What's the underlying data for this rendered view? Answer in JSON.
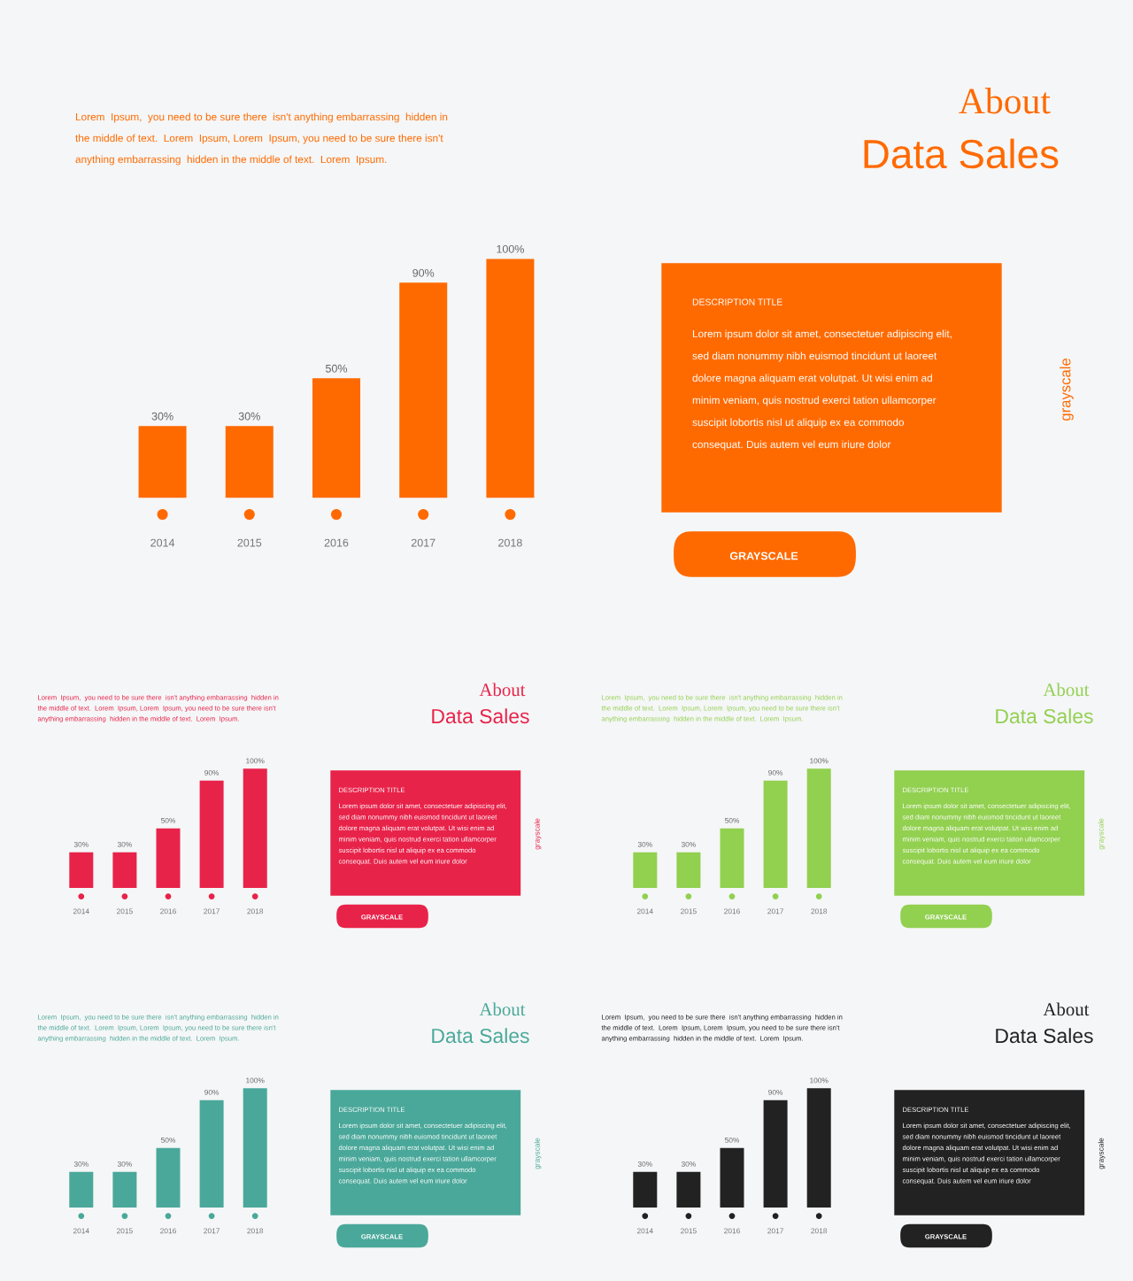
{
  "chart_data": [
    {
      "type": "bar",
      "categories": [
        "2014",
        "2015",
        "2016",
        "2017",
        "2018"
      ],
      "values": [
        30,
        30,
        50,
        90,
        100
      ],
      "value_labels": [
        "30%",
        "30%",
        "50%",
        "90%",
        "100%"
      ],
      "color": "#ff6a00",
      "annotations": [
        "About",
        "Data Sales",
        "Lorem  Ipsum,  you need to be sure there  isn't anything embarrassing  hidden in",
        "the middle of text.  Lorem  Ipsum, Lorem  Ipsum, you need to be sure there isn't",
        "anything embarrassing  hidden in the middle of text.  Lorem  Ipsum.",
        "DESCRIPTION TITLE",
        "Lorem ipsum dolor sit amet, consectetuer adipiscing elit,",
        "sed diam nonummy nibh euismod tincidunt ut laoreet",
        "dolore magna aliquam erat volutpat. Ut wisi enim ad",
        "minim veniam, quis nostrud exerci tation ullamcorper",
        "suscipit lobortis nisl ut aliquip ex ea commodo",
        "consequat. Duis autem vel eum iriure dolor",
        "GRAYSCALE",
        "grayscale"
      ]
    },
    {
      "type": "bar",
      "categories": [
        "2014",
        "2015",
        "2016",
        "2017",
        "2018"
      ],
      "values": [
        30,
        30,
        50,
        90,
        100
      ],
      "value_labels": [
        "30%",
        "30%",
        "50%",
        "90%",
        "100%"
      ],
      "color": "#e8234a",
      "annotations": [
        "About",
        "Data Sales",
        "Lorem  Ipsum,  you need to be sure there  isn't anything embarrassing  hidden in",
        "the middle of text.  Lorem  Ipsum, Lorem  Ipsum, you need to be sure there isn't",
        "anything embarrassing  hidden in the middle of text.  Lorem  Ipsum.",
        "DESCRIPTION TITLE",
        "Lorem ipsum dolor sit amet, consectetuer adipiscing elit,",
        "sed diam nonummy nibh euismod tincidunt ut laoreet",
        "dolore magna aliquam erat volutpat. Ut wisi enim ad",
        "minim veniam, quis nostrud exerci tation ullamcorper",
        "suscipit lobortis nisl ut aliquip ex ea commodo",
        "consequat. Duis autem vel eum iriure dolor",
        "GRAYSCALE",
        "grayscale"
      ]
    },
    {
      "type": "bar",
      "categories": [
        "2014",
        "2015",
        "2016",
        "2017",
        "2018"
      ],
      "values": [
        30,
        30,
        50,
        90,
        100
      ],
      "value_labels": [
        "30%",
        "30%",
        "50%",
        "90%",
        "100%"
      ],
      "color": "#92d050",
      "annotations": [
        "About",
        "Data Sales",
        "Lorem  Ipsum,  you need to be sure there  isn't anything embarrassing  hidden in",
        "the middle of text.  Lorem  Ipsum, Lorem  Ipsum, you need to be sure there isn't",
        "anything embarrassing  hidden in the middle of text.  Lorem  Ipsum.",
        "DESCRIPTION TITLE",
        "Lorem ipsum dolor sit amet, consectetuer adipiscing elit,",
        "sed diam nonummy nibh euismod tincidunt ut laoreet",
        "dolore magna aliquam erat volutpat. Ut wisi enim ad",
        "minim veniam, quis nostrud exerci tation ullamcorper",
        "suscipit lobortis nisl ut aliquip ex ea commodo",
        "consequat. Duis autem vel eum iriure dolor",
        "GRAYSCALE",
        "grayscale"
      ]
    },
    {
      "type": "bar",
      "categories": [
        "2014",
        "2015",
        "2016",
        "2017",
        "2018"
      ],
      "values": [
        30,
        30,
        50,
        90,
        100
      ],
      "value_labels": [
        "30%",
        "30%",
        "50%",
        "90%",
        "100%"
      ],
      "color": "#4aa89a",
      "annotations": [
        "About",
        "Data Sales",
        "Lorem  Ipsum,  you need to be sure there  isn't anything embarrassing  hidden in",
        "the middle of text.  Lorem  Ipsum, Lorem  Ipsum, you need to be sure there isn't",
        "anything embarrassing  hidden in the middle of text.  Lorem  Ipsum.",
        "DESCRIPTION TITLE",
        "Lorem ipsum dolor sit amet, consectetuer adipiscing elit,",
        "sed diam nonummy nibh euismod tincidunt ut laoreet",
        "dolore magna aliquam erat volutpat. Ut wisi enim ad",
        "minim veniam, quis nostrud exerci tation ullamcorper",
        "suscipit lobortis nisl ut aliquip ex ea commodo",
        "consequat. Duis autem vel eum iriure dolor",
        "GRAYSCALE",
        "grayscale"
      ]
    },
    {
      "type": "bar",
      "categories": [
        "2014",
        "2015",
        "2016",
        "2017",
        "2018"
      ],
      "values": [
        30,
        30,
        50,
        90,
        100
      ],
      "value_labels": [
        "30%",
        "30%",
        "50%",
        "90%",
        "100%"
      ],
      "color": "#222222",
      "annotations": [
        "About",
        "Data Sales",
        "Lorem  Ipsum,  you need to be sure there  isn't anything embarrassing  hidden in",
        "the middle of text.  Lorem  Ipsum, Lorem  Ipsum, you need to be sure there isn't",
        "anything embarrassing  hidden in the middle of text.  Lorem  Ipsum.",
        "DESCRIPTION TITLE",
        "Lorem ipsum dolor sit amet, consectetuer adipiscing elit,",
        "sed diam nonummy nibh euismod tincidunt ut laoreet",
        "dolore magna aliquam erat volutpat. Ut wisi enim ad",
        "minim veniam, quis nostrud exerci tation ullamcorper",
        "suscipit lobortis nisl ut aliquip ex ea commodo",
        "consequat. Duis autem vel eum iriure dolor",
        "GRAYSCALE",
        "grayscale"
      ]
    }
  ]
}
